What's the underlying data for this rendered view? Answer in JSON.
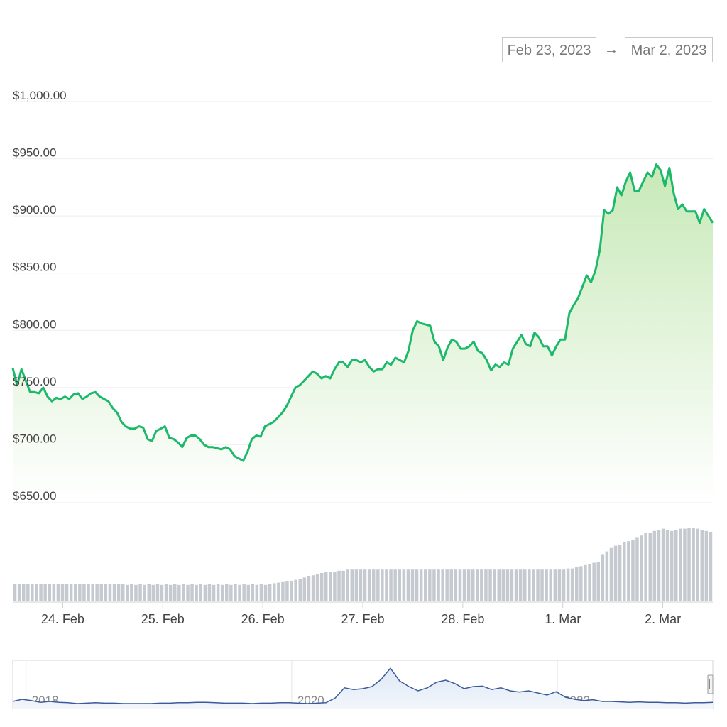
{
  "date_range": {
    "from": "Feb 23, 2023",
    "arrow": "→",
    "to": "Mar 2, 2023"
  },
  "colors": {
    "line": "#1db96b",
    "area_top": "#cdebc0",
    "volume": "#c5cad0",
    "navigator": "#3a5b9b"
  },
  "chart_data": [
    {
      "type": "area",
      "y_ticks": [
        "$650.00",
        "$700.00",
        "$750.00",
        "$800.00",
        "$850.00",
        "$900.00",
        "$950.00",
        "$1,000.00"
      ],
      "y_tick_values": [
        650,
        700,
        750,
        800,
        850,
        900,
        950,
        1000
      ],
      "ylim": [
        650,
        1000
      ],
      "x_ticks": [
        "24. Feb",
        "25. Feb",
        "26. Feb",
        "27. Feb",
        "28. Feb",
        "1. Mar",
        "2. Mar"
      ],
      "x_tick_values": [
        "2023-02-24",
        "2023-02-25",
        "2023-02-26",
        "2023-02-27",
        "2023-02-28",
        "2023-03-01",
        "2023-03-02"
      ],
      "xlim": [
        "2023-02-23T12:00",
        "2023-03-02T12:00"
      ],
      "grid": true,
      "series": [
        {
          "values": [
            767,
            752,
            766,
            756,
            746,
            746,
            745,
            750,
            742,
            738,
            741,
            740,
            742,
            740,
            744,
            745,
            740,
            742,
            745,
            746,
            742,
            740,
            738,
            732,
            728,
            720,
            716,
            714,
            714,
            716,
            715,
            705,
            703,
            712,
            714,
            716,
            706,
            705,
            702,
            698,
            706,
            708,
            708,
            705,
            700,
            698,
            698,
            697,
            696,
            698,
            696,
            690,
            688,
            686,
            694,
            705,
            708,
            707,
            716,
            718,
            720,
            724,
            728,
            734,
            742,
            750,
            752,
            756,
            760,
            764,
            762,
            758,
            760,
            758,
            766,
            772,
            772,
            768,
            774,
            774,
            772,
            774,
            768,
            764,
            766,
            766,
            772,
            770,
            776,
            774,
            772,
            782,
            800,
            808,
            806,
            805,
            804,
            790,
            786,
            774,
            785,
            792,
            790,
            784,
            784,
            786,
            790,
            782,
            780,
            774,
            765,
            770,
            768,
            772,
            770,
            784,
            790,
            796,
            788,
            786,
            798,
            794,
            786,
            786,
            778,
            786,
            792,
            792,
            815,
            822,
            828,
            838,
            848,
            842,
            852,
            870,
            905,
            902,
            905,
            925,
            918,
            930,
            938,
            922,
            922,
            930,
            938,
            934,
            945,
            940,
            926,
            942,
            920,
            906,
            910,
            904,
            904,
            904,
            894,
            906,
            900,
            894
          ]
        }
      ],
      "volume": [
        30,
        31,
        30,
        31,
        30,
        31,
        30,
        31,
        30,
        31,
        30,
        31,
        30,
        31,
        30,
        31,
        30,
        31,
        30,
        31,
        30,
        31,
        30,
        31,
        30,
        30,
        29,
        30,
        29,
        30,
        29,
        30,
        29,
        30,
        29,
        30,
        29,
        30,
        29,
        30,
        29,
        30,
        29,
        30,
        29,
        30,
        29,
        30,
        29,
        30,
        29,
        30,
        29,
        30,
        29,
        30,
        29,
        30,
        29,
        30,
        32,
        33,
        34,
        35,
        36,
        38,
        40,
        42,
        44,
        46,
        48,
        50,
        52,
        52,
        52,
        54,
        54,
        56,
        56,
        56,
        56,
        56,
        56,
        56,
        56,
        56,
        56,
        56,
        56,
        56,
        56,
        56,
        56,
        56,
        56,
        56,
        56,
        56,
        56,
        56,
        56,
        56,
        56,
        56,
        56,
        56,
        56,
        56,
        56,
        56,
        56,
        56,
        56,
        56,
        56,
        56,
        56,
        56,
        56,
        56,
        56,
        56,
        56,
        56,
        56,
        56,
        56,
        56,
        58,
        58,
        60,
        62,
        64,
        66,
        68,
        70,
        82,
        88,
        94,
        98,
        100,
        104,
        106,
        108,
        112,
        116,
        120,
        120,
        124,
        126,
        128,
        126,
        124,
        126,
        128,
        128,
        130,
        130,
        128,
        126,
        124,
        122
      ]
    },
    {
      "type": "line",
      "x_ticks": [
        "2018",
        "2020",
        "2022"
      ],
      "x_tick_values": [
        2018,
        2020,
        2022
      ],
      "xlim": [
        2017.9,
        2023.17
      ],
      "ylim": [
        0,
        1
      ],
      "grid": true,
      "series": [
        {
          "values": [
            0.1,
            0.15,
            0.12,
            0.08,
            0.1,
            0.08,
            0.07,
            0.05,
            0.06,
            0.07,
            0.06,
            0.06,
            0.05,
            0.05,
            0.05,
            0.05,
            0.06,
            0.06,
            0.07,
            0.07,
            0.08,
            0.08,
            0.07,
            0.06,
            0.06,
            0.06,
            0.05,
            0.06,
            0.06,
            0.07,
            0.07,
            0.06,
            0.05,
            0.06,
            0.07,
            0.18,
            0.42,
            0.38,
            0.4,
            0.45,
            0.62,
            0.88,
            0.58,
            0.45,
            0.35,
            0.42,
            0.55,
            0.6,
            0.52,
            0.4,
            0.45,
            0.46,
            0.38,
            0.42,
            0.35,
            0.32,
            0.35,
            0.3,
            0.25,
            0.33,
            0.2,
            0.15,
            0.12,
            0.14,
            0.1,
            0.1,
            0.09,
            0.08,
            0.09,
            0.08,
            0.08,
            0.07,
            0.07,
            0.06,
            0.07,
            0.07,
            0.08
          ]
        }
      ]
    }
  ]
}
